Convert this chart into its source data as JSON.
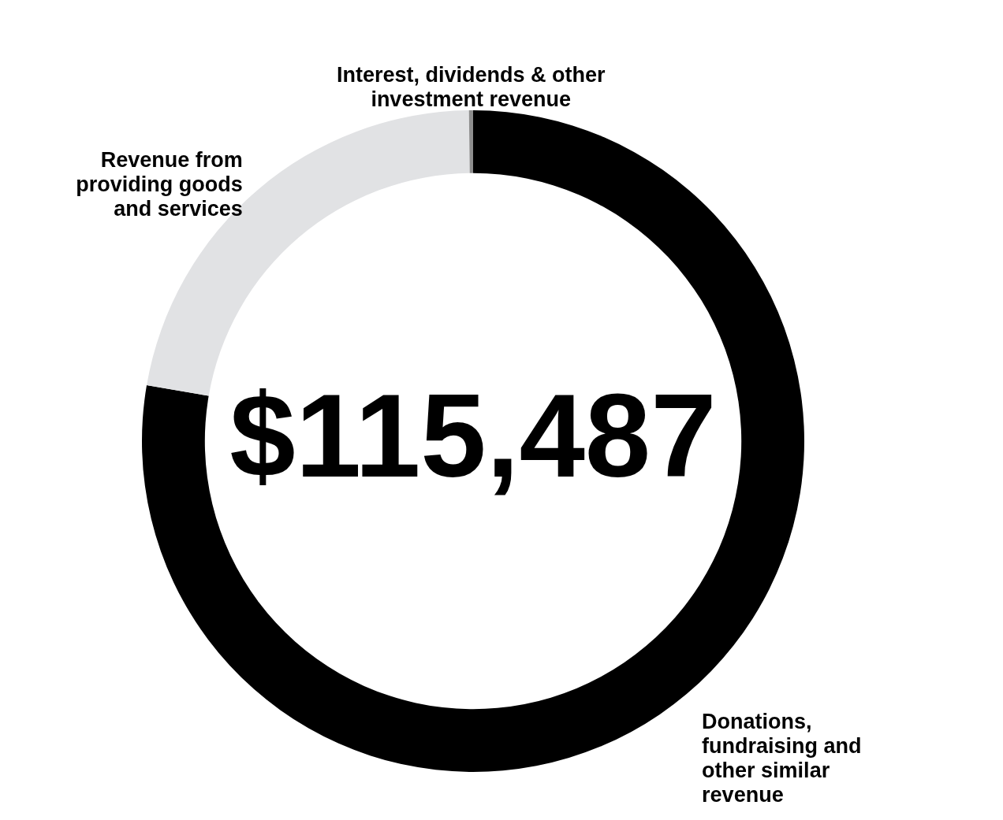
{
  "chart_data": {
    "type": "donut",
    "categories": [
      "Donations, fundraising and other similar revenue",
      "Revenue from providing goods and services",
      "Interest, dividends & other investment revenue"
    ],
    "values": [
      77.7,
      22.1,
      0.2
    ],
    "colors": [
      "#000000",
      "#e1e2e4",
      "#8e8e8e"
    ],
    "annotations": [
      "$115,487"
    ]
  }
}
